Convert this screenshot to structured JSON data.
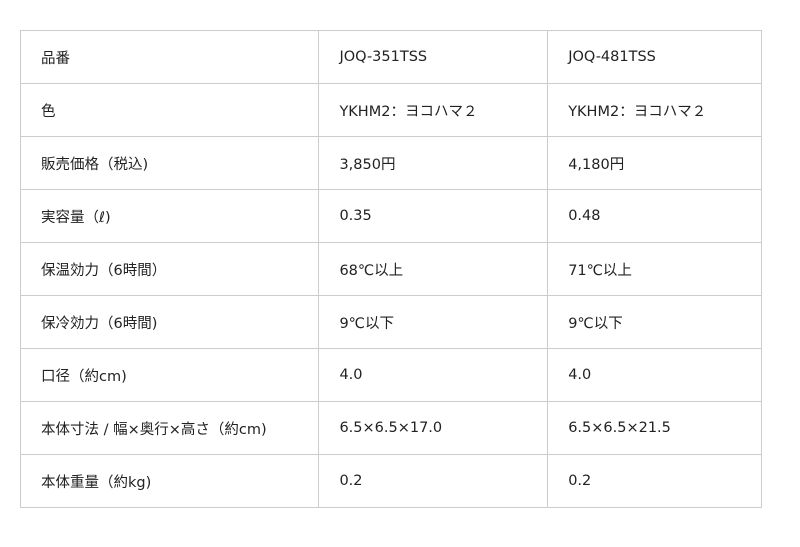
{
  "table": {
    "rows": [
      {
        "label": "品番",
        "v1": "JOQ-351TSS",
        "v2": "JOQ-481TSS"
      },
      {
        "label": "色",
        "v1": "YKHM2：ヨコハマ２",
        "v2": "YKHM2：ヨコハマ２"
      },
      {
        "label": "販売価格（税込)",
        "v1": "3,850円",
        "v2": "4,180円"
      },
      {
        "label": "実容量（ℓ)",
        "v1": "0.35",
        "v2": "0.48"
      },
      {
        "label": "保温効力（6時間）",
        "v1": "68℃以上",
        "v2": "71℃以上"
      },
      {
        "label": "保冷効力（6時間)",
        "v1": "9℃以下",
        "v2": "9℃以下"
      },
      {
        "label": "口径（約cm)",
        "v1": "4.0",
        "v2": "4.0"
      },
      {
        "label": "本体寸法 / 幅×奥行×高さ（約cm)",
        "v1": "6.5×6.5×17.0",
        "v2": "6.5×6.5×21.5"
      },
      {
        "label": "本体重量（約kg)",
        "v1": "0.2",
        "v2": "0.2"
      }
    ]
  }
}
